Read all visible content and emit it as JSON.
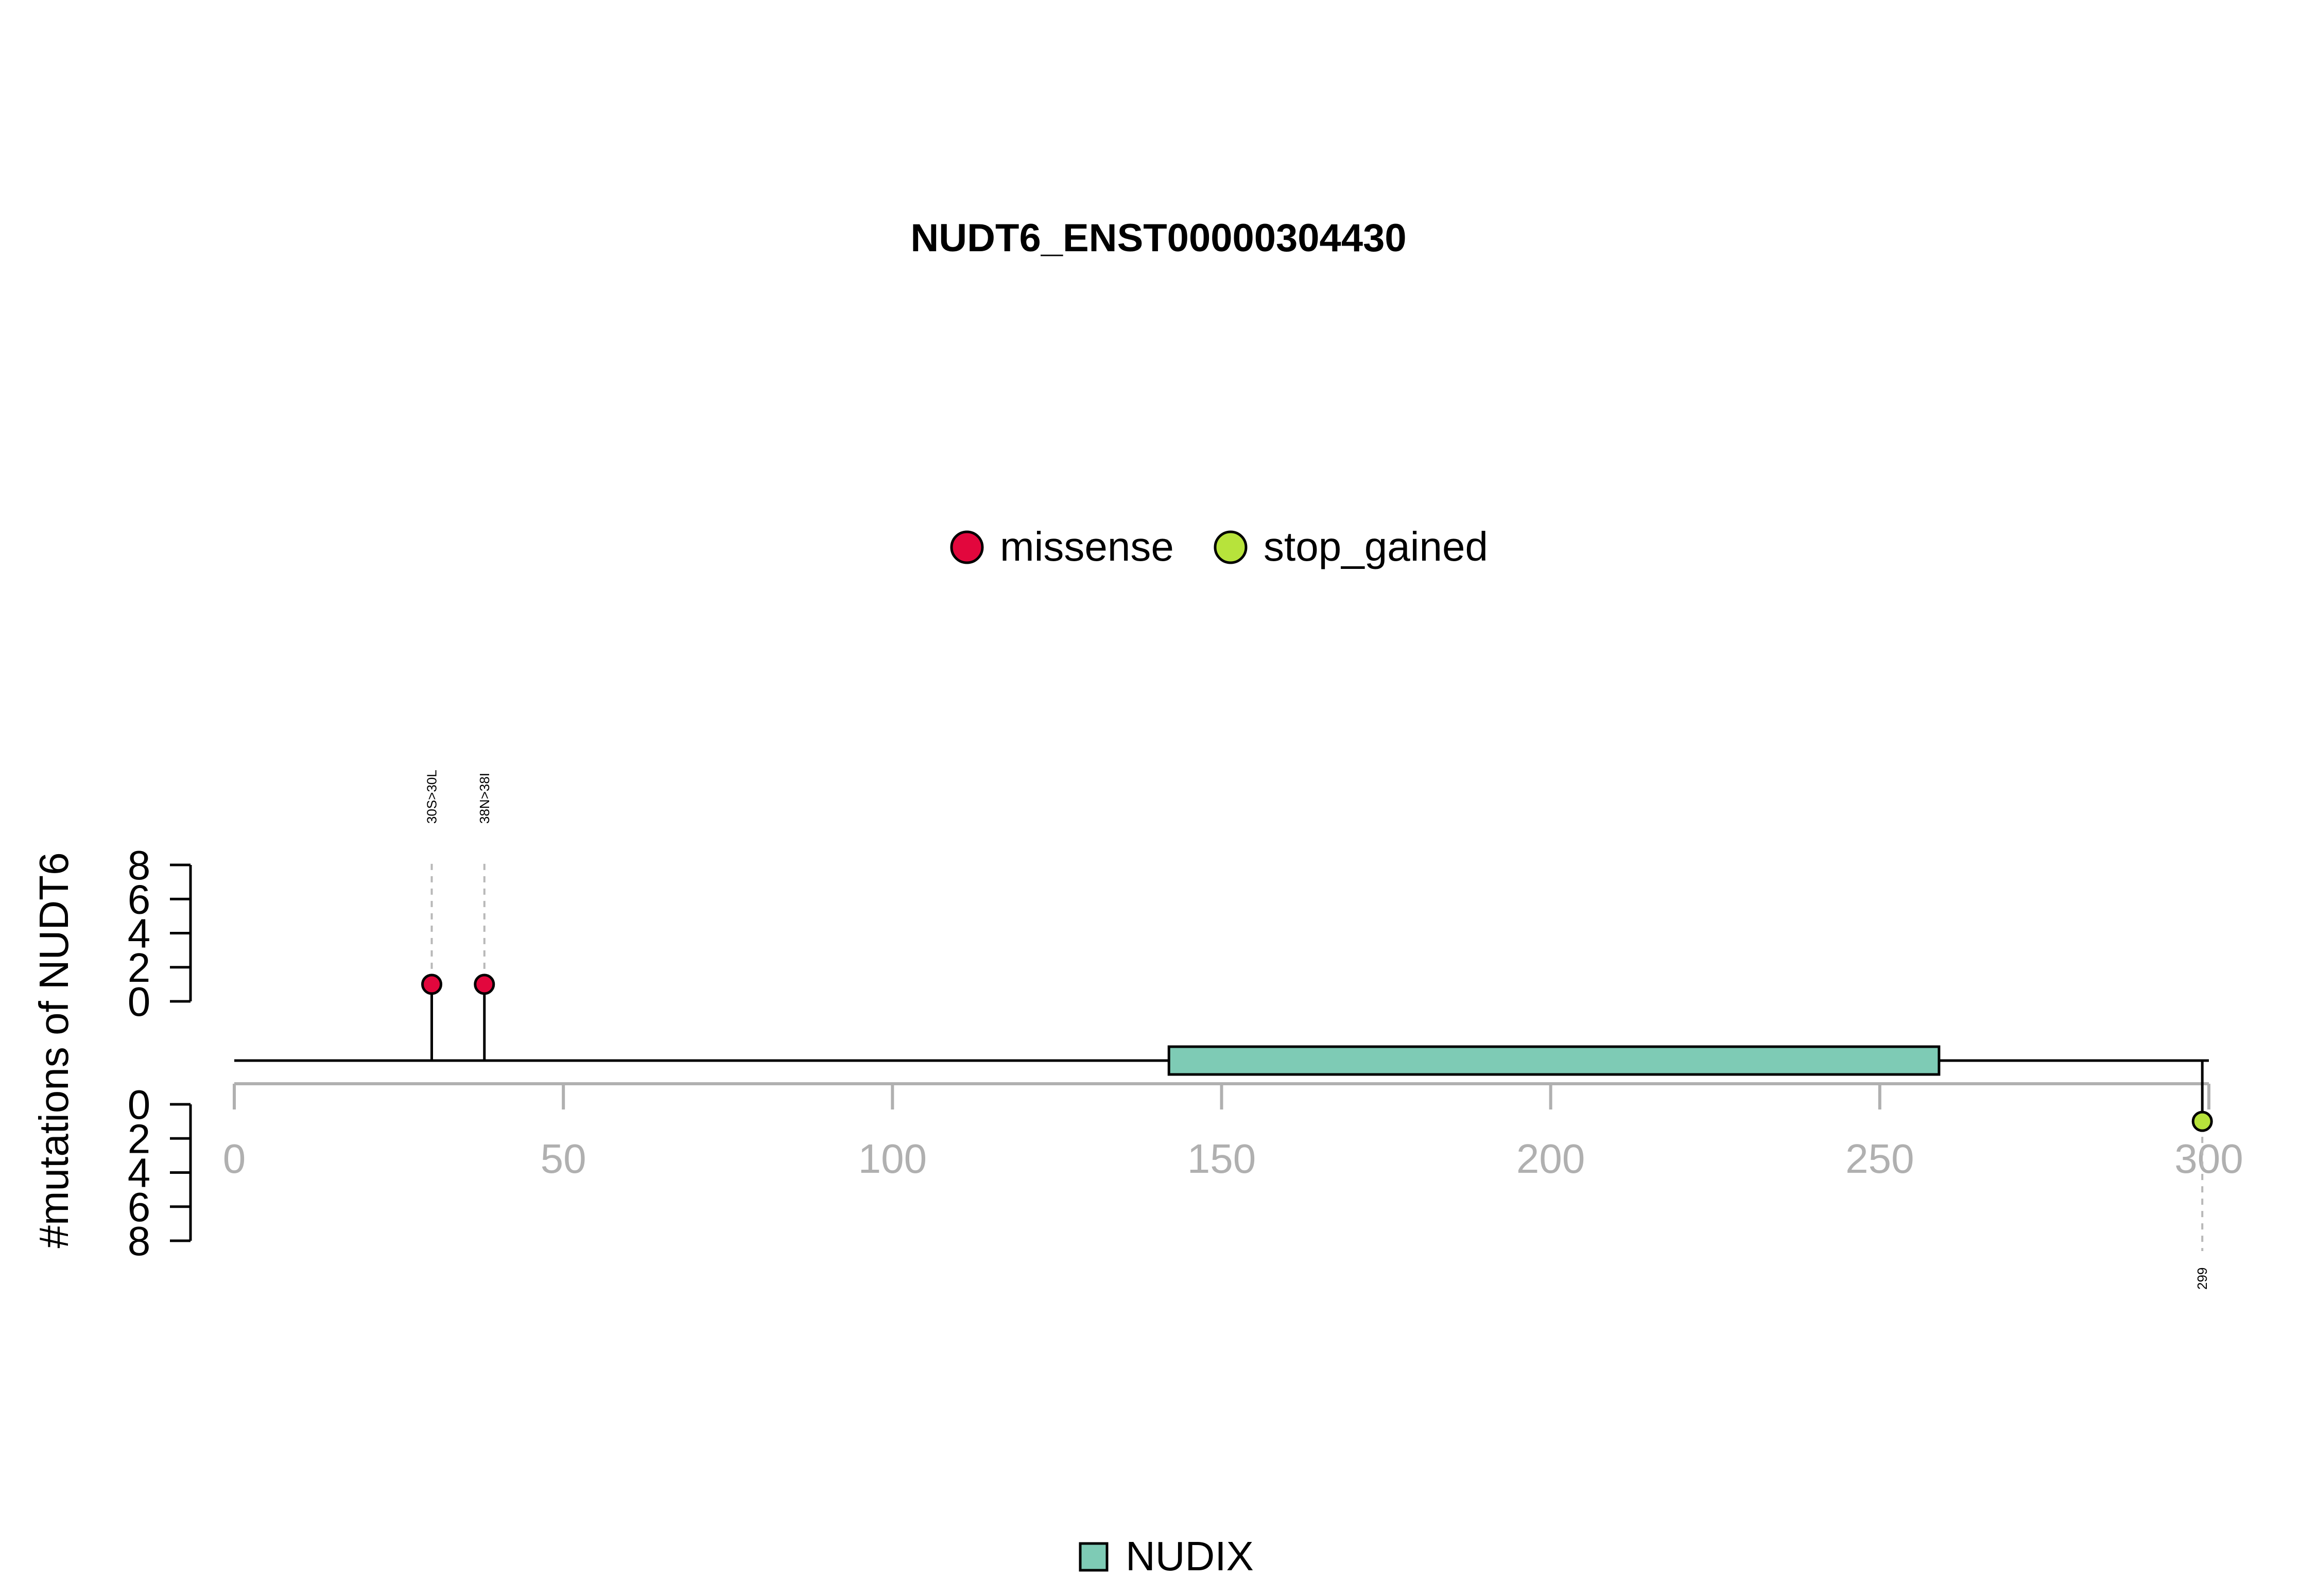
{
  "chart_data": {
    "type": "lollipop",
    "title": "NUDT6_ENST00000304430",
    "ylabel": "#mutations of NUDT6",
    "xlim": [
      0,
      300
    ],
    "x_ticks": [
      0,
      50,
      100,
      150,
      200,
      250,
      300
    ],
    "y_ticks_top": [
      0,
      2,
      4,
      6,
      8
    ],
    "y_ticks_bottom": [
      0,
      2,
      4,
      6,
      8
    ],
    "ylim": [
      0,
      8
    ],
    "protein_length": 300,
    "legend": [
      {
        "label": "missense",
        "color": "#e2073d"
      },
      {
        "label": "stop_gained",
        "color": "#b7e33b"
      }
    ],
    "mutations": [
      {
        "position": 30,
        "count": 1,
        "type": "missense",
        "label": "30S>30L",
        "side": "top"
      },
      {
        "position": 38,
        "count": 1,
        "type": "missense",
        "label": "38N>38I",
        "side": "top"
      },
      {
        "position": 299,
        "count": 1,
        "type": "stop_gained",
        "label": "299",
        "side": "bottom"
      }
    ],
    "domains": [
      {
        "name": "NUDIX",
        "start": 142,
        "end": 259,
        "color": "#7ecbb5"
      }
    ]
  }
}
